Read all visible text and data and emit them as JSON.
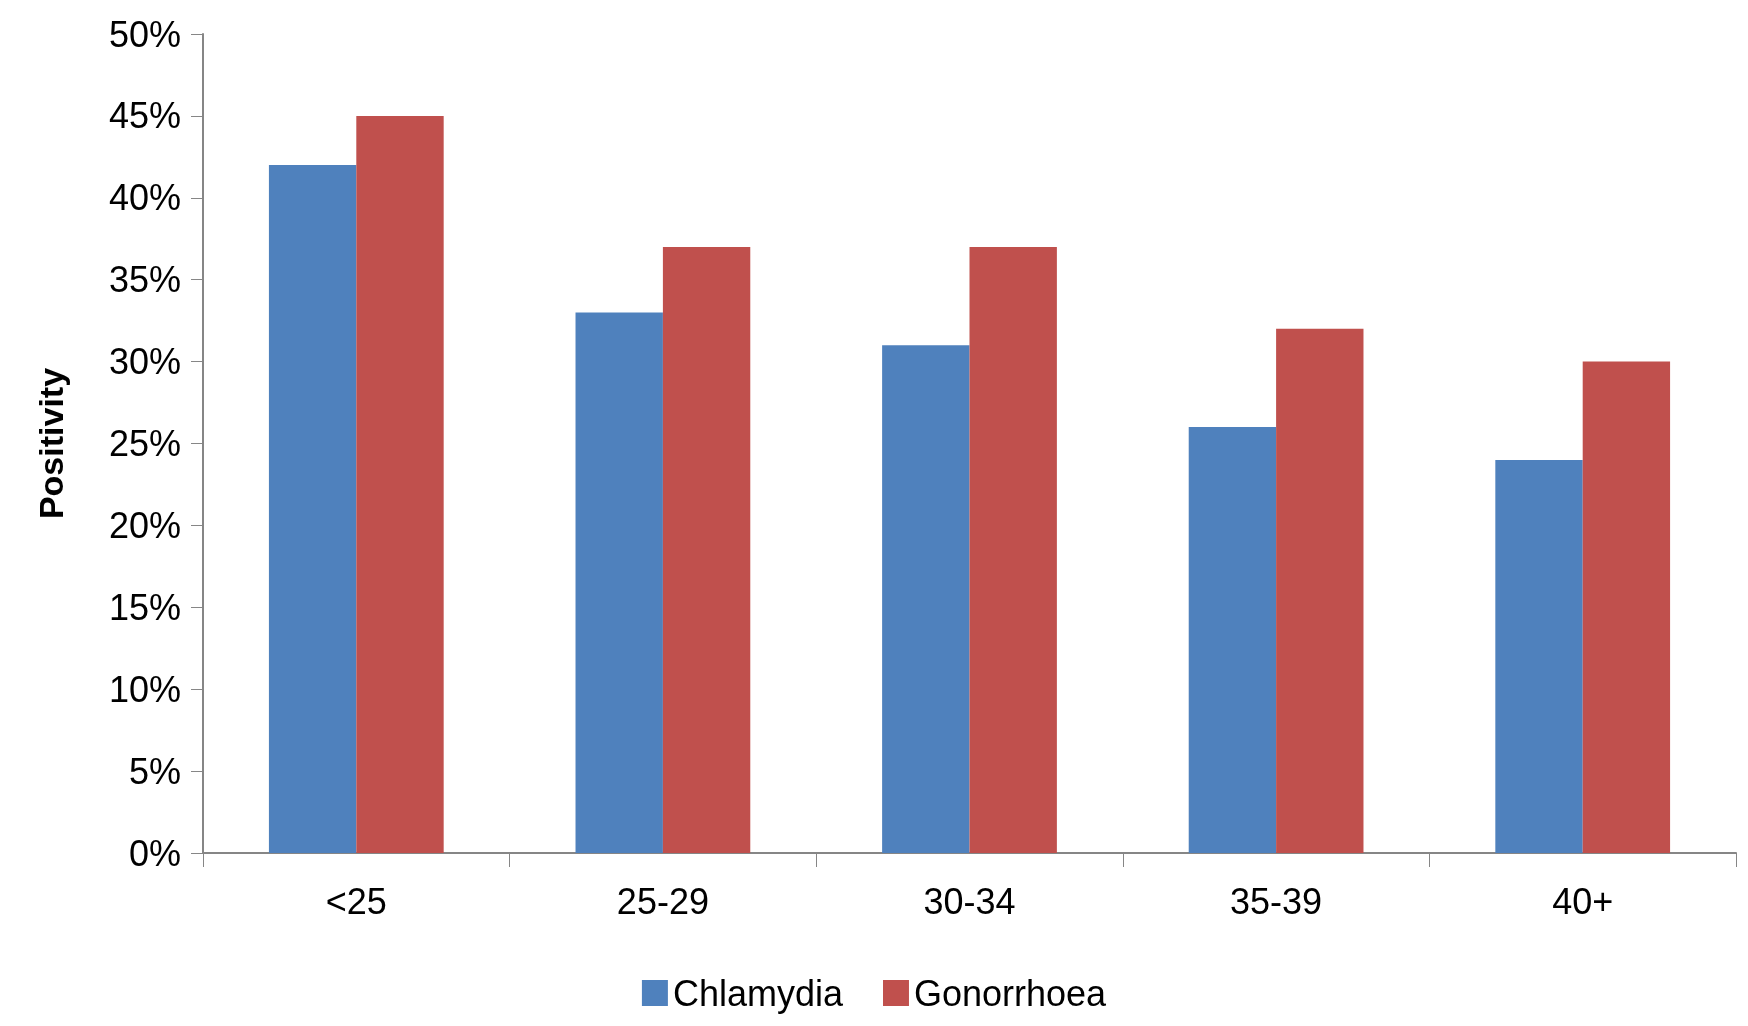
{
  "chart_data": {
    "type": "bar",
    "ylabel": "Positivity",
    "categories": [
      "<25",
      "25-29",
      "30-34",
      "35-39",
      "40+"
    ],
    "series": [
      {
        "name": "Chlamydia",
        "color": "#4f81bd",
        "values": [
          42,
          33,
          31,
          26,
          24
        ]
      },
      {
        "name": "Gonorrhoea",
        "color": "#c0504d",
        "values": [
          45,
          37,
          37,
          32,
          30
        ]
      }
    ],
    "ylim": [
      0,
      50
    ],
    "yticks": [
      {
        "value": 0,
        "label": "0%"
      },
      {
        "value": 5,
        "label": "5%"
      },
      {
        "value": 10,
        "label": "10%"
      },
      {
        "value": 15,
        "label": "15%"
      },
      {
        "value": 20,
        "label": "20%"
      },
      {
        "value": 25,
        "label": "25%"
      },
      {
        "value": 30,
        "label": "30%"
      },
      {
        "value": 35,
        "label": "35%"
      },
      {
        "value": 40,
        "label": "40%"
      },
      {
        "value": 45,
        "label": "45%"
      },
      {
        "value": 50,
        "label": "50%"
      }
    ],
    "grid": false,
    "legend": "bottom"
  }
}
